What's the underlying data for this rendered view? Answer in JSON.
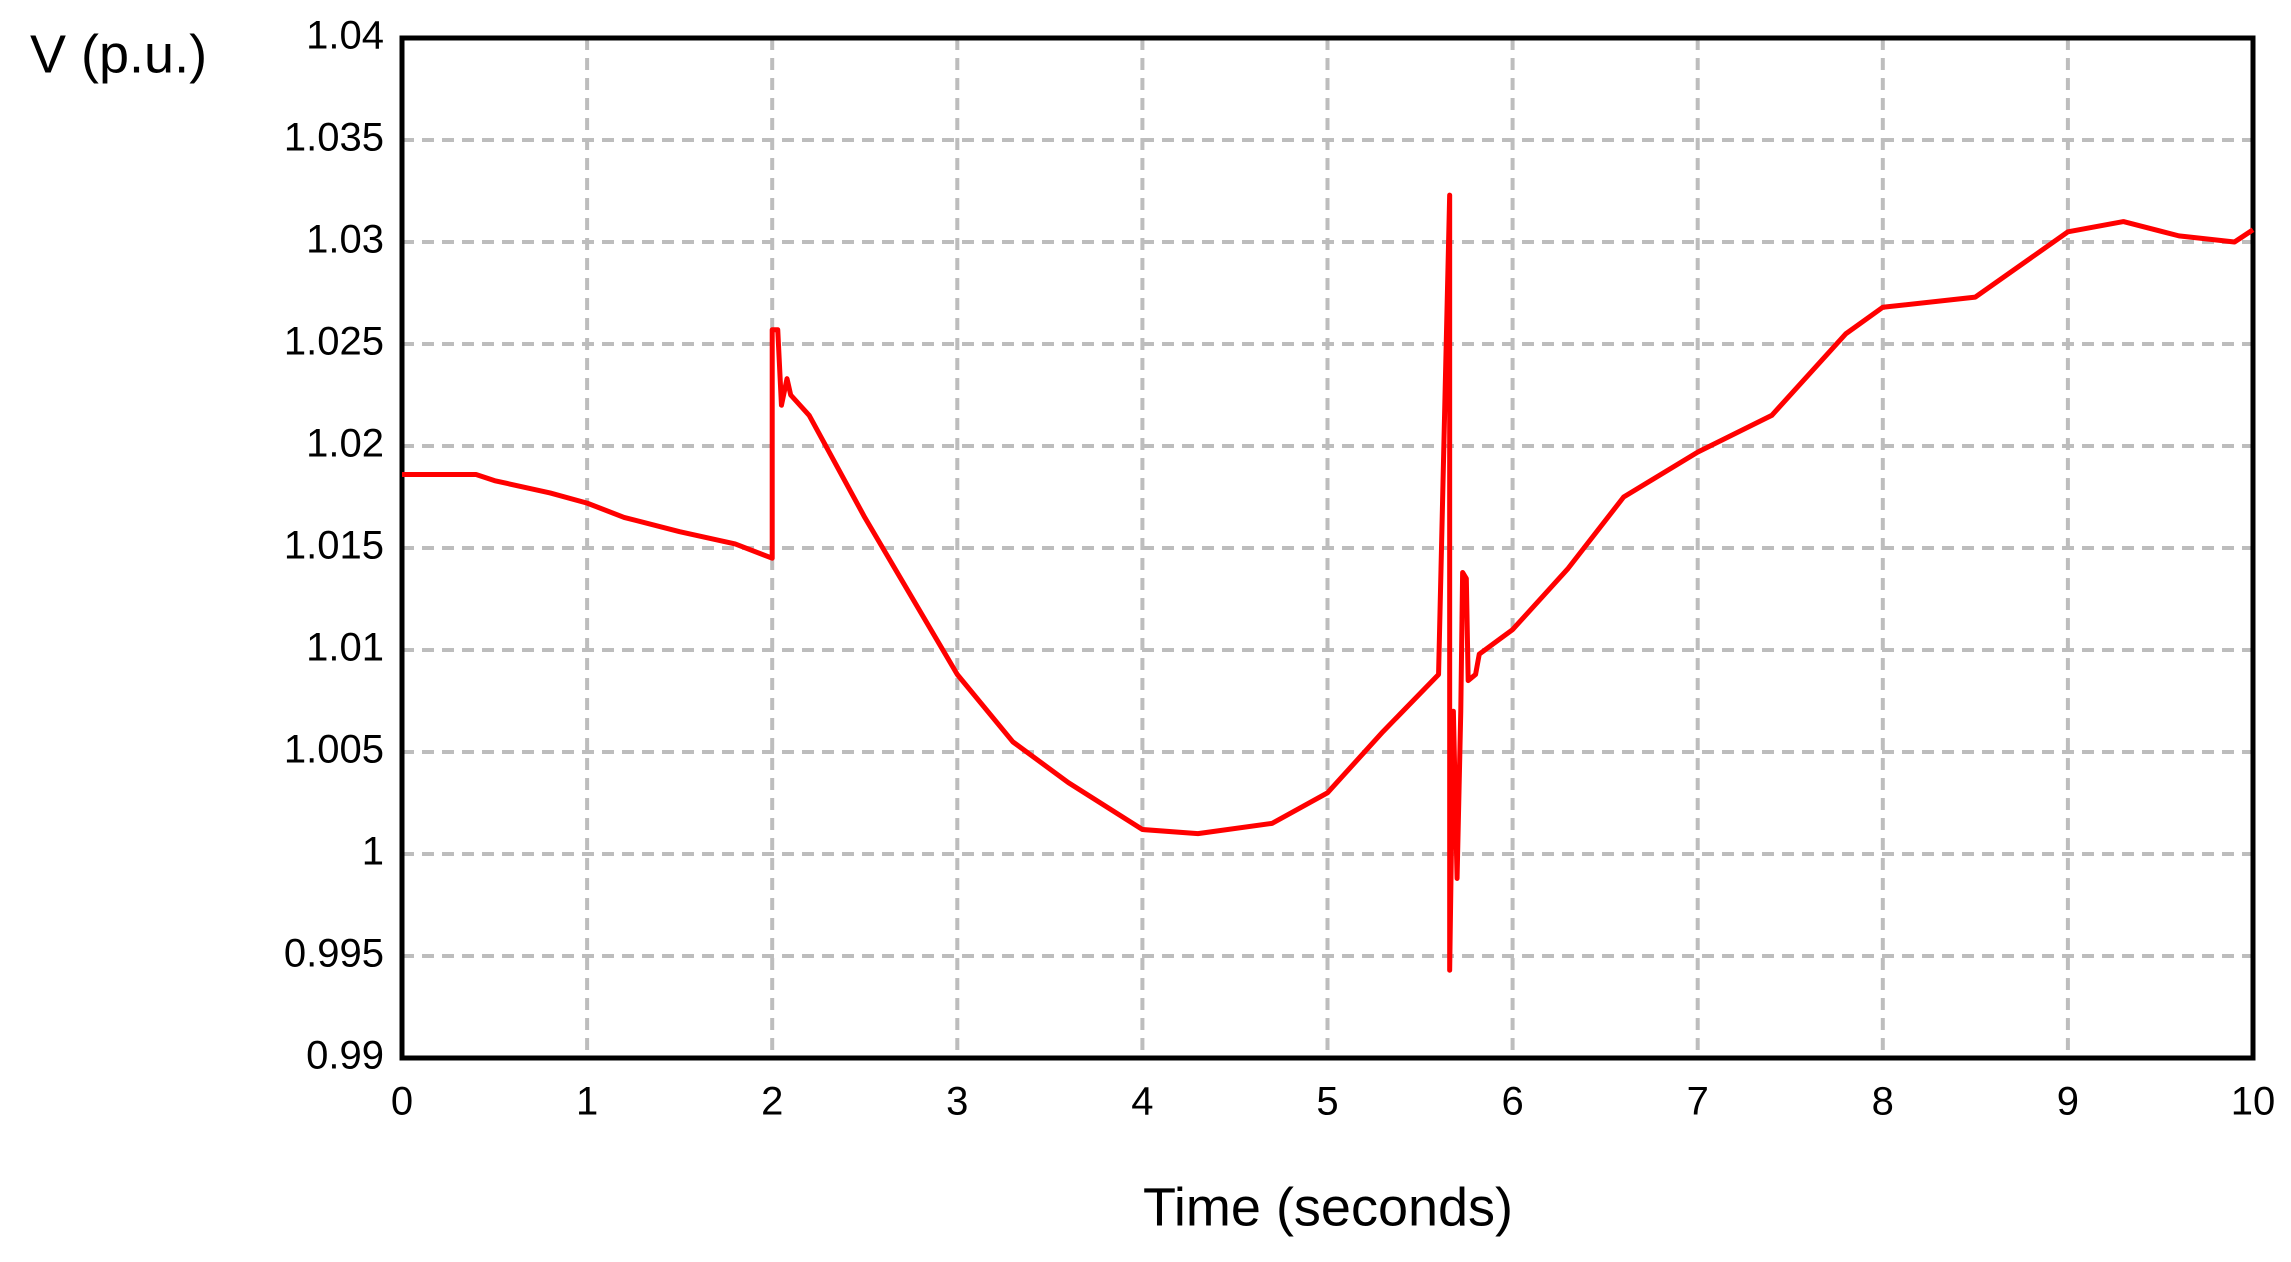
{
  "chart_data": {
    "type": "line",
    "ylabel": "V (p.u.)",
    "xlabel": "Time (seconds)",
    "xlim": [
      0,
      10
    ],
    "ylim": [
      0.99,
      1.04
    ],
    "xticks": [
      0,
      1,
      2,
      3,
      4,
      5,
      6,
      7,
      8,
      9,
      10
    ],
    "yticks": [
      0.99,
      0.995,
      1,
      1.005,
      1.01,
      1.015,
      1.02,
      1.025,
      1.03,
      1.035,
      1.04
    ],
    "grid": true,
    "series": [
      {
        "color": "#ff0000",
        "x": [
          0,
          0.4,
          0.5,
          0.8,
          1.0,
          1.2,
          1.5,
          1.8,
          2.0,
          2.0,
          2.03,
          2.05,
          2.08,
          2.1,
          2.2,
          2.5,
          3.0,
          3.3,
          3.6,
          4.0,
          4.3,
          4.7,
          5.0,
          5.3,
          5.6,
          5.66,
          5.66,
          5.68,
          5.7,
          5.72,
          5.73,
          5.75,
          5.76,
          5.8,
          5.82,
          6.0,
          6.3,
          6.6,
          7.0,
          7.4,
          7.8,
          8.0,
          8.5,
          9.0,
          9.3,
          9.6,
          9.9,
          10
        ],
        "values": [
          1.0186,
          1.0186,
          1.0183,
          1.0177,
          1.0172,
          1.0165,
          1.0158,
          1.0152,
          1.0145,
          1.0257,
          1.0257,
          1.022,
          1.0233,
          1.0225,
          1.0215,
          1.0165,
          1.0088,
          1.0055,
          1.0035,
          1.0012,
          1.001,
          1.0015,
          1.003,
          1.006,
          1.0088,
          1.0323,
          0.9943,
          1.007,
          0.9988,
          1.007,
          1.0138,
          1.0135,
          1.0085,
          1.0088,
          1.0098,
          1.011,
          1.014,
          1.0175,
          1.0197,
          1.0215,
          1.0255,
          1.0268,
          1.0273,
          1.0305,
          1.031,
          1.0303,
          1.03,
          1.0306
        ]
      }
    ]
  }
}
